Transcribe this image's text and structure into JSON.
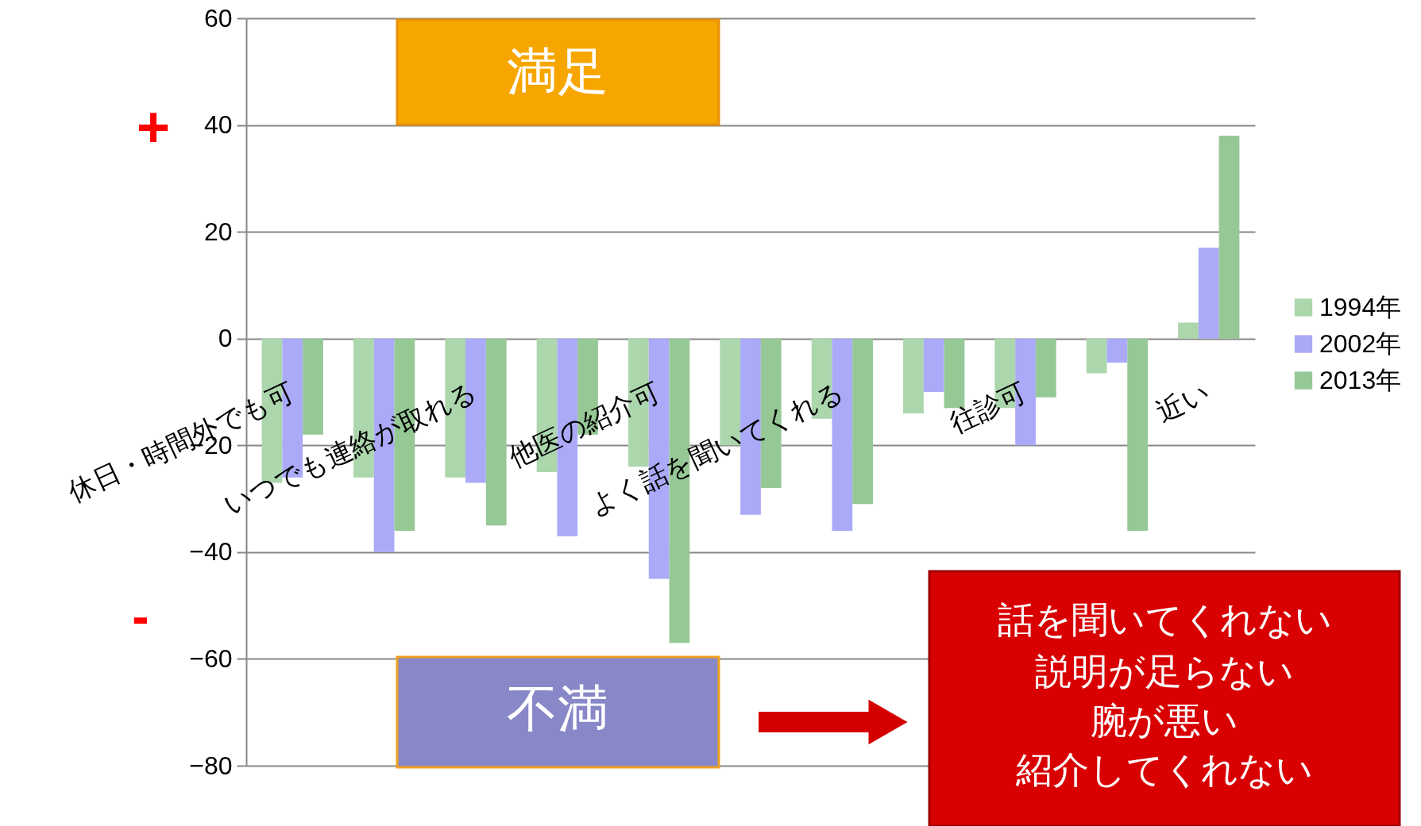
{
  "chart_data": {
    "type": "bar",
    "categories": [
      "休日・時間外でも可",
      null,
      "いつでも連絡が取れる",
      null,
      "他医の紹介可",
      null,
      "よく話を聞いてくれる",
      null,
      "往診可",
      null,
      "近い"
    ],
    "series": [
      {
        "name": "1994年",
        "color": "#acd6ac",
        "values": [
          -27,
          -26,
          -26,
          -25,
          -24,
          -20,
          -15,
          -14,
          -13,
          -6.5,
          3
        ]
      },
      {
        "name": "2002年",
        "color": "#aaaaf8",
        "values": [
          -26,
          -40,
          -27,
          -37,
          -45,
          -33,
          -36,
          -10,
          -20,
          -4.5,
          17
        ]
      },
      {
        "name": "2013年",
        "color": "#96c896",
        "values": [
          -18,
          -36,
          -35,
          -18,
          -57,
          -28,
          -31,
          -13,
          -11,
          -36,
          38
        ]
      }
    ],
    "ylim": [
      -80,
      60
    ],
    "yticks": [
      -80,
      -60,
      -40,
      -20,
      0,
      20,
      40,
      60
    ],
    "grid": "y",
    "legend": "right",
    "annotations": [
      "満足",
      "不満",
      "+",
      "-",
      "話を聞いてくれない",
      "説明が足らない",
      "腕が悪い",
      "紹介してくれない"
    ]
  }
}
